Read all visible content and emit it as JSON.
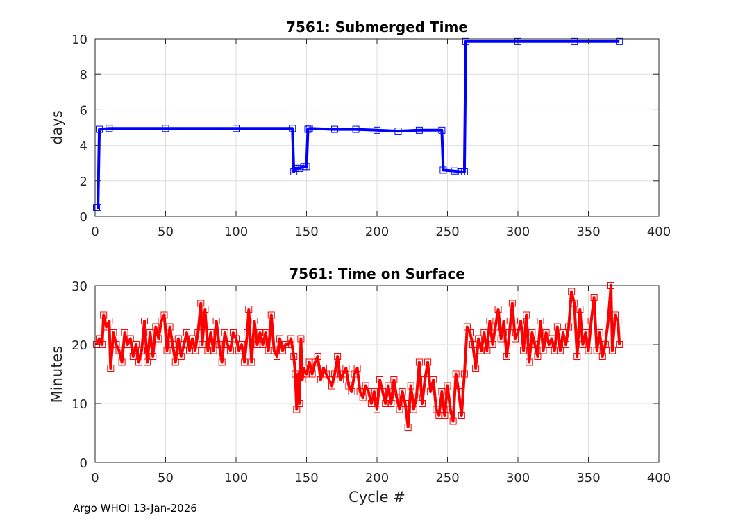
{
  "footer": "Argo WHOI 13-Jan-2026",
  "chart_data": [
    {
      "type": "line",
      "title": "7561: Submerged Time",
      "xlabel": "",
      "ylabel": "days",
      "xlim": [
        0,
        400
      ],
      "ylim": [
        0,
        10
      ],
      "xticks": [
        0,
        50,
        100,
        150,
        200,
        250,
        300,
        350,
        400
      ],
      "yticks": [
        0,
        2,
        4,
        6,
        8,
        10
      ],
      "grid": true,
      "color": "#0000ff",
      "marker": "square",
      "points": [
        [
          1,
          0.5
        ],
        [
          2,
          0.5
        ],
        [
          3,
          4.9
        ],
        [
          10,
          4.95
        ],
        [
          50,
          4.95
        ],
        [
          100,
          4.95
        ],
        [
          140,
          4.95
        ],
        [
          141,
          2.5
        ],
        [
          142,
          2.7
        ],
        [
          145,
          2.7
        ],
        [
          148,
          2.8
        ],
        [
          150,
          2.8
        ],
        [
          151,
          4.9
        ],
        [
          152,
          4.95
        ],
        [
          170,
          4.9
        ],
        [
          185,
          4.9
        ],
        [
          200,
          4.85
        ],
        [
          215,
          4.8
        ],
        [
          230,
          4.85
        ],
        [
          246,
          4.85
        ],
        [
          247,
          2.6
        ],
        [
          255,
          2.55
        ],
        [
          260,
          2.5
        ],
        [
          262,
          2.5
        ],
        [
          263,
          9.85
        ],
        [
          300,
          9.85
        ],
        [
          340,
          9.85
        ],
        [
          372,
          9.85
        ]
      ]
    },
    {
      "type": "line",
      "title": "7561: Time on Surface",
      "xlabel": "Cycle #",
      "ylabel": "Minutes",
      "xlim": [
        0,
        400
      ],
      "ylim": [
        0,
        30
      ],
      "xticks": [
        0,
        50,
        100,
        150,
        200,
        250,
        300,
        350,
        400
      ],
      "yticks": [
        0,
        10,
        20,
        30
      ],
      "grid": true,
      "color": "#ff0000",
      "marker": "square",
      "points": [
        [
          1,
          20
        ],
        [
          3,
          21
        ],
        [
          5,
          20
        ],
        [
          6,
          25
        ],
        [
          8,
          23
        ],
        [
          10,
          24
        ],
        [
          11,
          16
        ],
        [
          13,
          22
        ],
        [
          15,
          20
        ],
        [
          17,
          19
        ],
        [
          19,
          17
        ],
        [
          21,
          22
        ],
        [
          23,
          20
        ],
        [
          25,
          21
        ],
        [
          27,
          18
        ],
        [
          29,
          20
        ],
        [
          31,
          17
        ],
        [
          33,
          19
        ],
        [
          35,
          24
        ],
        [
          37,
          17
        ],
        [
          39,
          22
        ],
        [
          41,
          18
        ],
        [
          43,
          23
        ],
        [
          45,
          21
        ],
        [
          47,
          24
        ],
        [
          49,
          25
        ],
        [
          51,
          19
        ],
        [
          53,
          23
        ],
        [
          55,
          20
        ],
        [
          57,
          17
        ],
        [
          59,
          21
        ],
        [
          61,
          18
        ],
        [
          63,
          20
        ],
        [
          65,
          22
        ],
        [
          67,
          19
        ],
        [
          69,
          21
        ],
        [
          71,
          19
        ],
        [
          73,
          22
        ],
        [
          75,
          27
        ],
        [
          76,
          20
        ],
        [
          78,
          26
        ],
        [
          80,
          19
        ],
        [
          82,
          22
        ],
        [
          84,
          19
        ],
        [
          86,
          24
        ],
        [
          88,
          20
        ],
        [
          90,
          17
        ],
        [
          92,
          22
        ],
        [
          94,
          20
        ],
        [
          96,
          19
        ],
        [
          98,
          22
        ],
        [
          100,
          21
        ],
        [
          102,
          19
        ],
        [
          104,
          20
        ],
        [
          106,
          17
        ],
        [
          108,
          22
        ],
        [
          109,
          26
        ],
        [
          111,
          17
        ],
        [
          113,
          24
        ],
        [
          115,
          20
        ],
        [
          117,
          22
        ],
        [
          119,
          20
        ],
        [
          121,
          22
        ],
        [
          123,
          19
        ],
        [
          125,
          25
        ],
        [
          127,
          19
        ],
        [
          129,
          18
        ],
        [
          131,
          21
        ],
        [
          133,
          19
        ],
        [
          135,
          20
        ],
        [
          137,
          20
        ],
        [
          139,
          21
        ],
        [
          141,
          18
        ],
        [
          142,
          15
        ],
        [
          143,
          9
        ],
        [
          144,
          15
        ],
        [
          145,
          10
        ],
        [
          146,
          21
        ],
        [
          147,
          14
        ],
        [
          148,
          16
        ],
        [
          150,
          15
        ],
        [
          152,
          17
        ],
        [
          154,
          15
        ],
        [
          156,
          17
        ],
        [
          158,
          18
        ],
        [
          160,
          14
        ],
        [
          162,
          16
        ],
        [
          164,
          15
        ],
        [
          166,
          14
        ],
        [
          168,
          13
        ],
        [
          170,
          15
        ],
        [
          172,
          18
        ],
        [
          174,
          14
        ],
        [
          176,
          15
        ],
        [
          178,
          16
        ],
        [
          180,
          13
        ],
        [
          182,
          12
        ],
        [
          184,
          15
        ],
        [
          186,
          16
        ],
        [
          188,
          12
        ],
        [
          190,
          11
        ],
        [
          192,
          13
        ],
        [
          194,
          12
        ],
        [
          196,
          10
        ],
        [
          198,
          12
        ],
        [
          200,
          9
        ],
        [
          202,
          14
        ],
        [
          204,
          12
        ],
        [
          206,
          10
        ],
        [
          208,
          13
        ],
        [
          210,
          10
        ],
        [
          212,
          14
        ],
        [
          214,
          11
        ],
        [
          216,
          9
        ],
        [
          218,
          12
        ],
        [
          220,
          10
        ],
        [
          222,
          6
        ],
        [
          224,
          13
        ],
        [
          226,
          9
        ],
        [
          228,
          11
        ],
        [
          230,
          17
        ],
        [
          232,
          10
        ],
        [
          234,
          14
        ],
        [
          236,
          17
        ],
        [
          238,
          12
        ],
        [
          240,
          14
        ],
        [
          242,
          9
        ],
        [
          244,
          8
        ],
        [
          246,
          12
        ],
        [
          248,
          8
        ],
        [
          250,
          13
        ],
        [
          252,
          9
        ],
        [
          254,
          7
        ],
        [
          256,
          15
        ],
        [
          258,
          12
        ],
        [
          260,
          8
        ],
        [
          262,
          15
        ],
        [
          264,
          23
        ],
        [
          266,
          22
        ],
        [
          268,
          20
        ],
        [
          270,
          16
        ],
        [
          272,
          21
        ],
        [
          274,
          19
        ],
        [
          276,
          22
        ],
        [
          278,
          19
        ],
        [
          280,
          24
        ],
        [
          282,
          20
        ],
        [
          284,
          23
        ],
        [
          286,
          26
        ],
        [
          288,
          21
        ],
        [
          290,
          24
        ],
        [
          292,
          18
        ],
        [
          294,
          22
        ],
        [
          296,
          27
        ],
        [
          298,
          21
        ],
        [
          300,
          22
        ],
        [
          302,
          24
        ],
        [
          304,
          19
        ],
        [
          306,
          25
        ],
        [
          308,
          17
        ],
        [
          310,
          22
        ],
        [
          312,
          20
        ],
        [
          314,
          18
        ],
        [
          316,
          24
        ],
        [
          318,
          19
        ],
        [
          320,
          22
        ],
        [
          322,
          20
        ],
        [
          324,
          21
        ],
        [
          326,
          19
        ],
        [
          328,
          23
        ],
        [
          330,
          19
        ],
        [
          332,
          22
        ],
        [
          334,
          20
        ],
        [
          336,
          23
        ],
        [
          338,
          29
        ],
        [
          340,
          27
        ],
        [
          342,
          18
        ],
        [
          344,
          26
        ],
        [
          346,
          20
        ],
        [
          348,
          22
        ],
        [
          350,
          19
        ],
        [
          352,
          24
        ],
        [
          354,
          28
        ],
        [
          356,
          19
        ],
        [
          358,
          22
        ],
        [
          360,
          18
        ],
        [
          362,
          20
        ],
        [
          364,
          24
        ],
        [
          366,
          30
        ],
        [
          367,
          19
        ],
        [
          369,
          25
        ],
        [
          371,
          24
        ],
        [
          372,
          20
        ]
      ]
    }
  ]
}
